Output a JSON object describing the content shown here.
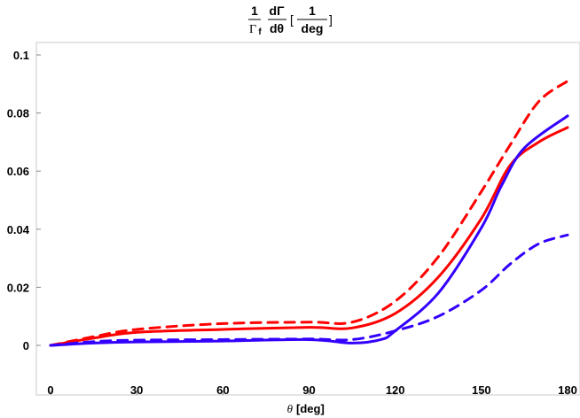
{
  "chart_data": {
    "type": "line",
    "title": "1/Γf dΓ/dθ [1/deg]",
    "title_parts": {
      "num1": "1",
      "den1": "Γ",
      "den1_sub": "f",
      "num2": "dΓ",
      "den2": "dθ",
      "num3": "1",
      "den3": "deg"
    },
    "xlabel": "θ [deg]",
    "xlabel_parts": {
      "symbol": "θ",
      "unit": "[deg]"
    },
    "ylabel": "",
    "xlim": [
      -5,
      184
    ],
    "ylim": [
      -0.011,
      0.104
    ],
    "xticks": [
      0,
      30,
      60,
      90,
      120,
      150,
      180
    ],
    "yticks": [
      0,
      0.02,
      0.04,
      0.06,
      0.08,
      0.1
    ],
    "ytick_labels": [
      "0",
      "0.02",
      "0.04",
      "0.06",
      "0.08",
      "0.1"
    ],
    "grid": false,
    "series": [
      {
        "name": "red-dashed",
        "color": "#ff0000",
        "dash": true,
        "x": [
          0,
          15,
          30,
          60,
          90,
          105,
          120,
          135,
          150,
          160,
          170,
          180
        ],
        "y": [
          0,
          0.003,
          0.0055,
          0.0075,
          0.008,
          0.008,
          0.0152,
          0.0305,
          0.053,
          0.069,
          0.084,
          0.091
        ]
      },
      {
        "name": "red-solid",
        "color": "#ff0000",
        "dash": false,
        "x": [
          0,
          15,
          30,
          60,
          90,
          105,
          120,
          135,
          150,
          160,
          170,
          180
        ],
        "y": [
          0,
          0.0025,
          0.0045,
          0.0055,
          0.0062,
          0.006,
          0.011,
          0.0235,
          0.0437,
          0.062,
          0.07,
          0.075
        ]
      },
      {
        "name": "blue-solid",
        "color": "#3300ff",
        "dash": false,
        "x": [
          0,
          15,
          30,
          60,
          90,
          105,
          115,
          120,
          135,
          150,
          157,
          165,
          180
        ],
        "y": [
          0,
          0.0008,
          0.0012,
          0.0015,
          0.002,
          0.0008,
          0.002,
          0.005,
          0.018,
          0.0405,
          0.055,
          0.068,
          0.079
        ]
      },
      {
        "name": "blue-dashed",
        "color": "#3300ff",
        "dash": true,
        "x": [
          0,
          15,
          30,
          60,
          90,
          105,
          120,
          135,
          150,
          160,
          170,
          180
        ],
        "y": [
          0,
          0.0013,
          0.0018,
          0.002,
          0.0022,
          0.002,
          0.005,
          0.01,
          0.019,
          0.028,
          0.035,
          0.038
        ]
      }
    ]
  }
}
